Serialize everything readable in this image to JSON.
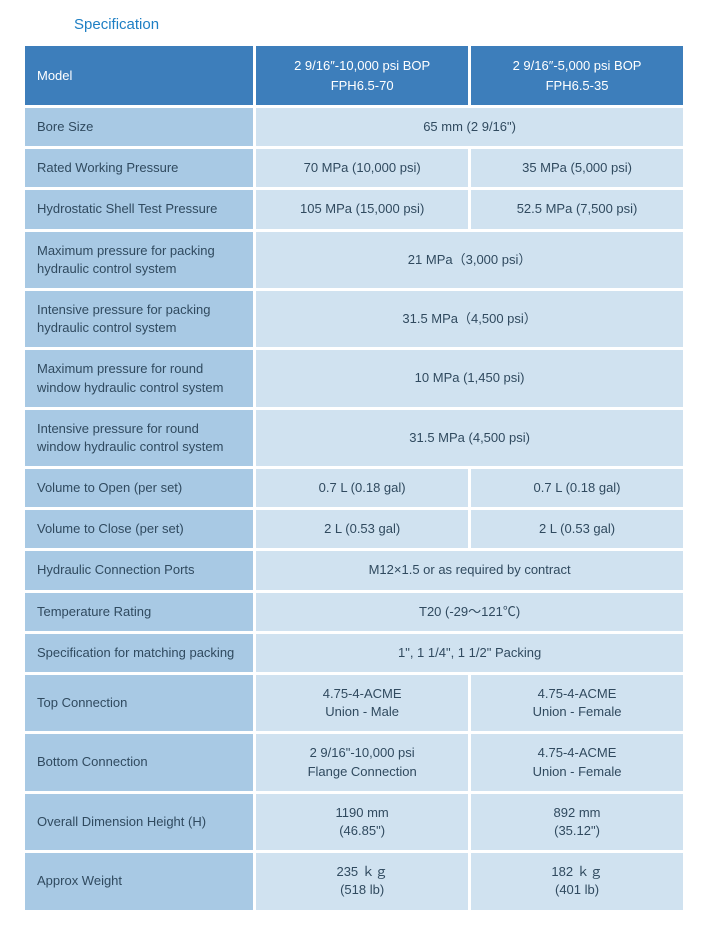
{
  "title": "Specification",
  "header": {
    "model": "Model",
    "colA_l1": "2 9/16″-10,000 psi BOP",
    "colA_l2": "FPH6.5-70",
    "colB_l1": "2 9/16″-5,000 psi BOP",
    "colB_l2": "FPH6.5-35"
  },
  "rows": {
    "bore_label": "Bore Size",
    "bore_val": "65 mm (2 9/16\")",
    "rwp_label": "Rated Working Pressure",
    "rwp_a": "70 MPa (10,000 psi)",
    "rwp_b": "35 MPa (5,000 psi)",
    "hstp_label": "Hydrostatic Shell Test Pressure",
    "hstp_a": "105 MPa (15,000 psi)",
    "hstp_b": "52.5 MPa (7,500 psi)",
    "maxpack_label": "Maximum pressure for packing hydraulic control system",
    "maxpack_val": "21 MPa（3,000 psi）",
    "intpack_label": "Intensive pressure for packing hydraulic control system",
    "intpack_val": "31.5 MPa（4,500 psi）",
    "maxround_label": "Maximum pressure for round window hydraulic control system",
    "maxround_val": "10 MPa (1,450 psi)",
    "intround_label": "Intensive pressure for round window hydraulic control system",
    "intround_val": "31.5 MPa (4,500 psi)",
    "vopen_label": "Volume to Open (per set)",
    "vopen_a": "0.7 L (0.18 gal)",
    "vopen_b": "0.7 L (0.18 gal)",
    "vclose_label": "Volume to Close (per set)",
    "vclose_a": "2 L (0.53 gal)",
    "vclose_b": "2 L (0.53 gal)",
    "ports_label": "Hydraulic Connection Ports",
    "ports_val": "M12×1.5 or as required by contract",
    "temp_label": "Temperature Rating",
    "temp_val": "T20 (-29～121℃)",
    "specpack_label": "Specification for matching packing",
    "specpack_val": "1\", 1 1/4\", 1 1/2\" Packing",
    "top_label": "Top Connection",
    "top_a_l1": "4.75-4-ACME",
    "top_a_l2": "Union - Male",
    "top_b_l1": "4.75-4-ACME",
    "top_b_l2": "Union - Female",
    "bot_label": "Bottom Connection",
    "bot_a_l1": "2 9/16\"-10,000 psi",
    "bot_a_l2": "Flange Connection",
    "bot_b_l1": "4.75-4-ACME",
    "bot_b_l2": "Union - Female",
    "dim_label": "Overall Dimension Height (H)",
    "dim_a_l1": "1190 mm",
    "dim_a_l2": "(46.85\")",
    "dim_b_l1": "892 mm",
    "dim_b_l2": "(35.12\")",
    "wt_label": "Approx Weight",
    "wt_a_l1": "235 ｋｇ",
    "wt_a_l2": "(518 lb)",
    "wt_b_l1": "182 ｋｇ",
    "wt_b_l2": "(401 lb)"
  }
}
